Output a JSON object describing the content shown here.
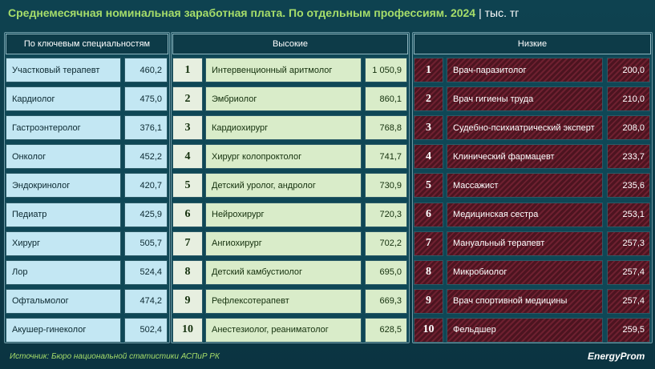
{
  "header": {
    "title": "Среднемесячная номинальная заработная плата. По отдельным профессиям. 2024",
    "unit": "| тыс. тг"
  },
  "panels": [
    {
      "heading": "По ключевым специальностям",
      "rows": [
        [
          "Участковый терапевт",
          "460,2"
        ],
        [
          "Кардиолог",
          "475,0"
        ],
        [
          "Гастроэнтеролог",
          "376,1"
        ],
        [
          "Онколог",
          "452,2"
        ],
        [
          "Эндокринолог",
          "420,7"
        ],
        [
          "Педиатр",
          "425,9"
        ],
        [
          "Хирург",
          "505,7"
        ],
        [
          "Лор",
          "524,4"
        ],
        [
          "Офтальмолог",
          "474,2"
        ],
        [
          "Акушер-гинеколог",
          "502,4"
        ]
      ]
    },
    {
      "heading": "Высокие",
      "rows": [
        [
          "1",
          "Интервенционный аритмолог",
          "1 050,9"
        ],
        [
          "2",
          "Эмбриолог",
          "860,1"
        ],
        [
          "3",
          "Кардиохирург",
          "768,8"
        ],
        [
          "4",
          "Хирург колопроктолог",
          "741,7"
        ],
        [
          "5",
          "Детский уролог, андролог",
          "730,9"
        ],
        [
          "6",
          "Нейрохирург",
          "720,3"
        ],
        [
          "7",
          "Ангиохирург",
          "702,2"
        ],
        [
          "8",
          "Детский камбустиолог",
          "695,0"
        ],
        [
          "9",
          "Рефлексотерапевт",
          "669,3"
        ],
        [
          "10",
          "Анестезиолог, реаниматолог",
          "628,5"
        ]
      ]
    },
    {
      "heading": "Низкие",
      "rows": [
        [
          "1",
          "Врач-паразитолог",
          "200,0"
        ],
        [
          "2",
          "Врач гигиены труда",
          "210,0"
        ],
        [
          "3",
          "Судебно-психиатрический эксперт",
          "208,0"
        ],
        [
          "4",
          "Клинический фармацевт",
          "233,7"
        ],
        [
          "5",
          "Массажист",
          "235,6"
        ],
        [
          "6",
          "Медицинская сестра",
          "253,1"
        ],
        [
          "7",
          "Мануальный терапевт",
          "257,3"
        ],
        [
          "8",
          "Микробиолог",
          "257,4"
        ],
        [
          "9",
          "Врач спортивной медицины",
          "257,4"
        ],
        [
          "10",
          "Фельдшер",
          "259,5"
        ]
      ]
    }
  ],
  "footer": {
    "source": "Источник: Бюро национальной статистики АСПиР РК",
    "logo": "EnergyProm"
  }
}
